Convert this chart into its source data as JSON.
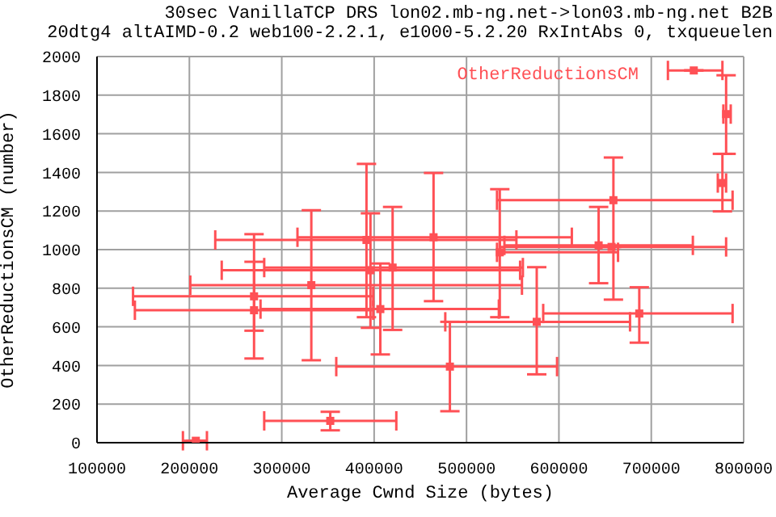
{
  "chart_data": {
    "type": "scatter",
    "title": "30sec VanillaTCP DRS lon02.mb-ng.net->lon03.mb-ng.net B2B",
    "subtitle": "20dtg4 altAIMD-0.2 web100-2.2.1, e1000-5.2.20 RxIntAbs 0, txqueuelen",
    "xlabel": "Average Cwnd Size (bytes)",
    "ylabel": "OtherReductionsCM (number)",
    "xlim": [
      100000,
      800000
    ],
    "xticks": [
      100000,
      200000,
      300000,
      400000,
      500000,
      600000,
      700000,
      800000
    ],
    "ylim": [
      0,
      2000
    ],
    "yticks": [
      0,
      200,
      400,
      600,
      800,
      1000,
      1200,
      1400,
      1600,
      1800,
      2000
    ],
    "grid": true,
    "legend": "top right",
    "marker": "square",
    "series": [
      {
        "name": "OtherReductionsCM",
        "color": "#ff5055",
        "x": [
          207000,
          352500,
          270000,
          270000,
          391700,
          396000,
          420000,
          332000,
          406700,
          464300,
          536000,
          659000,
          643000,
          657000,
          687000,
          576000,
          482000,
          746000,
          781000,
          777000
        ],
        "values": [
          10,
          113,
          758,
          686,
          1050,
          893,
          907,
          816,
          692,
          1064,
          986,
          1256,
          1022,
          1014,
          669,
          626,
          394,
          1928,
          1702,
          1345
        ],
        "errors": [
          null,
          [
            64,
            160
          ],
          [
            580,
            937
          ],
          [
            436,
            1080
          ],
          [
            650,
            1444
          ],
          [
            595,
            1188
          ],
          [
            584,
            1221
          ],
          [
            427,
            1204
          ],
          [
            457,
            928
          ],
          [
            733,
            1397
          ],
          [
            650,
            1313
          ],
          [
            741,
            1477
          ],
          [
            826,
            1221
          ],
          null,
          [
            518,
            805
          ],
          [
            354,
            909
          ],
          [
            163,
            626
          ],
          null,
          [
            1496,
            1903
          ],
          [
            1198,
            1496
          ]
        ],
        "xerrors": [
          [
            193000,
            219000
          ],
          [
            281000,
            424000
          ],
          [
            139000,
            399000
          ],
          [
            141000,
            399000
          ],
          [
            228000,
            554000
          ],
          [
            235000,
            558000
          ],
          [
            281000,
            561000
          ],
          [
            201000,
            560000
          ],
          [
            277000,
            535000
          ],
          [
            317000,
            614000
          ],
          [
            533000,
            664000
          ],
          [
            533000,
            788000
          ],
          [
            541000,
            745000
          ],
          [
            536000,
            781000
          ],
          [
            583000,
            788000
          ],
          [
            477000,
            677000
          ],
          [
            359000,
            598000
          ],
          [
            718000,
            777000
          ],
          [
            778000,
            786000
          ],
          [
            772000,
            781000
          ]
        ]
      }
    ]
  }
}
